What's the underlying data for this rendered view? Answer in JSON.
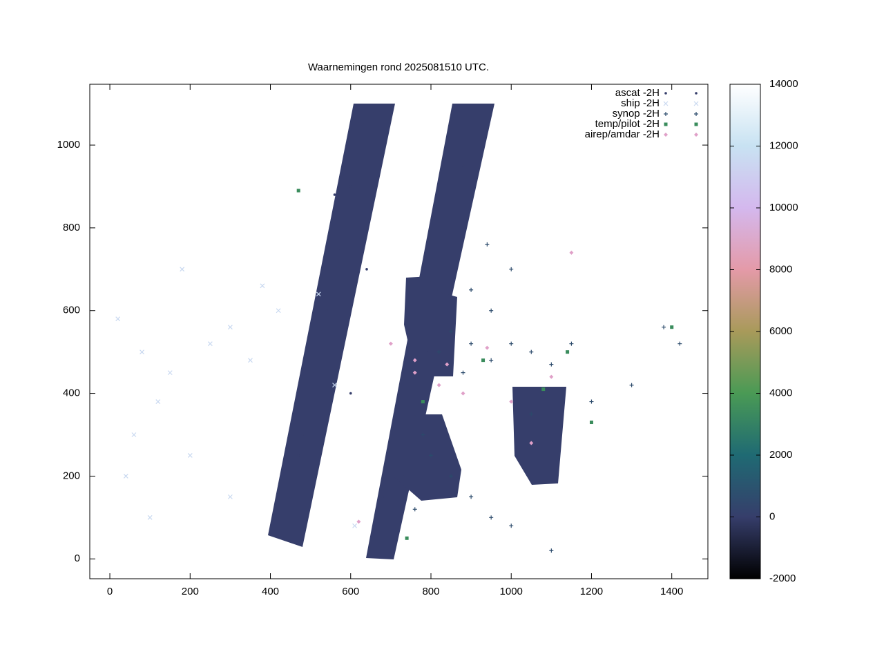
{
  "chart_data": {
    "type": "scatter",
    "title": "Waarnemingen rond 2025081510 UTC.",
    "xlim": [
      -50,
      1490
    ],
    "ylim": [
      -48,
      1147
    ],
    "xticks": [
      0,
      200,
      400,
      600,
      800,
      1000,
      1200,
      1400
    ],
    "yticks": [
      0,
      200,
      400,
      600,
      800,
      1000
    ],
    "legend": "top-right",
    "series": [
      {
        "name": "ascat -2H",
        "color": "#363e6b",
        "marker": "dot",
        "x": [
          420,
          450,
          480,
          510,
          540,
          570,
          600,
          630,
          660,
          620,
          700,
          730,
          760,
          790,
          820,
          850,
          880,
          900,
          470,
          530,
          640,
          680,
          560,
          600
        ],
        "y": [
          60,
          150,
          300,
          450,
          600,
          750,
          900,
          1050,
          1080,
          980,
          60,
          200,
          350,
          500,
          650,
          800,
          950,
          1080,
          250,
          550,
          700,
          150,
          880,
          400
        ]
      },
      {
        "name": "ship -2H",
        "color": "#c8d8f0",
        "marker": "cross",
        "x": [
          20,
          80,
          150,
          250,
          300,
          350,
          420,
          120,
          60,
          200,
          300,
          100,
          180,
          380,
          520,
          560,
          610,
          40
        ],
        "y": [
          580,
          500,
          450,
          520,
          560,
          480,
          600,
          380,
          300,
          250,
          150,
          100,
          700,
          660,
          640,
          420,
          80,
          200
        ]
      },
      {
        "name": "synop -2H",
        "color": "#2b4a6b",
        "marker": "plus",
        "x": [
          820,
          850,
          900,
          950,
          1000,
          1050,
          1100,
          900,
          950,
          780,
          800,
          850,
          900,
          950,
          1000,
          1100,
          1200,
          1300,
          1380,
          1420,
          1000,
          1050,
          940,
          880,
          1150,
          760
        ],
        "y": [
          500,
          550,
          520,
          480,
          520,
          500,
          470,
          650,
          600,
          300,
          250,
          200,
          150,
          100,
          80,
          20,
          380,
          420,
          560,
          520,
          700,
          350,
          760,
          450,
          520,
          120
        ]
      },
      {
        "name": "temp/pilot -2H",
        "color": "#3a8c5c",
        "marker": "square",
        "x": [
          470,
          1200,
          1400,
          780,
          930,
          1080,
          1140,
          740
        ],
        "y": [
          890,
          330,
          560,
          380,
          480,
          410,
          500,
          50
        ]
      },
      {
        "name": "airep/amdar -2H",
        "color": "#e0a0c8",
        "marker": "diamond",
        "x": [
          700,
          760,
          820,
          880,
          1000,
          1100,
          1150,
          1050,
          620,
          760,
          940,
          840
        ],
        "y": [
          520,
          480,
          420,
          400,
          380,
          440,
          740,
          280,
          90,
          450,
          510,
          470
        ]
      }
    ],
    "colorbar": {
      "lim": [
        -2000,
        14000
      ],
      "ticks": [
        -2000,
        0,
        2000,
        4000,
        6000,
        8000,
        10000,
        12000,
        14000
      ],
      "colors": [
        "#000000",
        "#363e6b",
        "#1f6a73",
        "#4a9a55",
        "#a89a5a",
        "#e49aa8",
        "#d4b8ee",
        "#c8e2f2",
        "#ffffff"
      ]
    }
  }
}
